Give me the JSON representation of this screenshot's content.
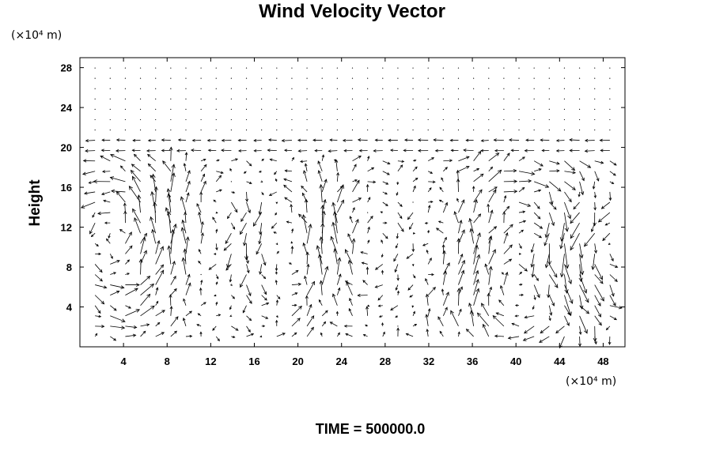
{
  "chart_data": {
    "type": "quiver",
    "title": "Wind Velocity Vector",
    "ylabel": "Height",
    "xlabel": "",
    "x_unit": "(×10⁴ m)",
    "y_unit": "(×10⁴ m)",
    "footer": "TIME = 500000.0",
    "xlim": [
      0,
      50
    ],
    "ylim": [
      0,
      29
    ],
    "x_ticks": [
      4,
      8,
      12,
      16,
      20,
      24,
      28,
      32,
      36,
      40,
      44,
      48
    ],
    "y_ticks": [
      4,
      8,
      12,
      16,
      20,
      24,
      28
    ],
    "grid": false,
    "inversion_height": 20,
    "stable_layer_flow": "westward, weak, with near-zero dots above 22",
    "vortices": [
      {
        "x": 4.5,
        "y": 11,
        "radius": 6,
        "direction": "counterclockwise"
      },
      {
        "x": 12,
        "y": 11,
        "radius": 5,
        "direction": "clockwise"
      },
      {
        "x": 19,
        "y": 10,
        "radius": 5,
        "direction": "counterclockwise"
      },
      {
        "x": 26,
        "y": 10,
        "radius": 5,
        "direction": "clockwise"
      },
      {
        "x": 32,
        "y": 9,
        "radius": 5,
        "direction": "counterclockwise"
      },
      {
        "x": 40,
        "y": 8,
        "radius": 8,
        "direction": "clockwise"
      },
      {
        "x": 47,
        "y": 9,
        "radius": 4,
        "direction": "counterclockwise"
      }
    ]
  }
}
